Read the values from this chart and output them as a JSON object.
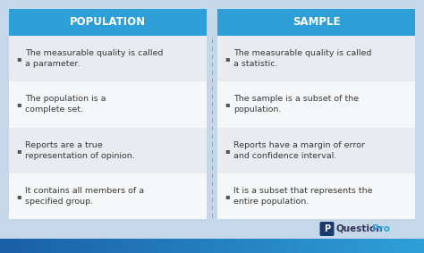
{
  "background_color": "#c5d8ea",
  "header_color": "#2e9fd8",
  "card_bg": "#ffffff",
  "row_colors": [
    "#e8ecf0",
    "#f5f7f9",
    "#e8ecf0",
    "#f5f7f9"
  ],
  "header_text_color": "#ffffff",
  "body_text_color": "#3a3a3a",
  "divider_color": "#999999",
  "left_title": "POPULATION",
  "right_title": "SAMPLE",
  "left_bullets": [
    "The measurable quality is called\na parameter.",
    "The population is a\ncomplete set.",
    "Reports are a true\nrepresentation of opinion.",
    "It contains all members of a\nspecified group."
  ],
  "right_bullets": [
    "The measurable quality is called\na statistic.",
    "The sample is a subset of the\npopulation.",
    "Reports have a margin of error\nand confidence interval.",
    "It is a subset that represents the\nentire population."
  ],
  "bottom_bar_color": "#1a5fa8",
  "bottom_bar_color2": "#2e9fd8",
  "watermark_q": "Question",
  "watermark_p": "Pro",
  "icon_color": "#1a3a6e",
  "figsize": [
    4.74,
    2.83
  ],
  "dpi": 100
}
